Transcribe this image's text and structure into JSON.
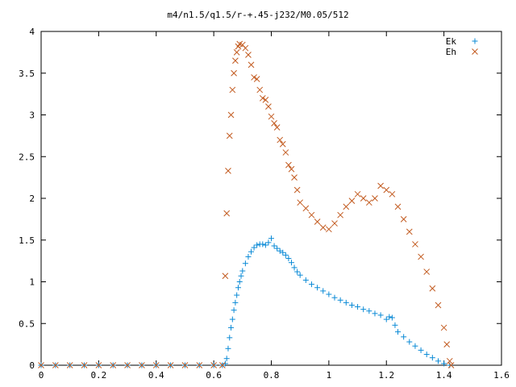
{
  "chart_data": {
    "type": "scatter",
    "title": "m4/n1.5/q1.5/r-+.45-j232/M0.05/512",
    "xlim": [
      0,
      1.6
    ],
    "ylim": [
      0,
      4
    ],
    "x_ticks": [
      "0",
      "0.2",
      "0.4",
      "0.6",
      "0.8",
      "1",
      "1.2",
      "1.4",
      "1.6"
    ],
    "y_ticks": [
      "0",
      "0.5",
      "1",
      "1.5",
      "2",
      "2.5",
      "3",
      "3.5",
      "4"
    ],
    "grid": false,
    "legend_position": "top-right",
    "series": [
      {
        "name": "Ek",
        "marker": "plus",
        "color": "#0a8ad6",
        "points": [
          [
            0.0,
            0.0
          ],
          [
            0.05,
            0.0
          ],
          [
            0.1,
            0.0
          ],
          [
            0.15,
            0.0
          ],
          [
            0.2,
            0.0
          ],
          [
            0.25,
            0.0
          ],
          [
            0.3,
            0.0
          ],
          [
            0.35,
            0.0
          ],
          [
            0.4,
            0.0
          ],
          [
            0.45,
            0.0
          ],
          [
            0.5,
            0.0
          ],
          [
            0.55,
            0.0
          ],
          [
            0.6,
            0.0
          ],
          [
            0.63,
            0.0
          ],
          [
            0.64,
            0.02
          ],
          [
            0.645,
            0.08
          ],
          [
            0.65,
            0.2
          ],
          [
            0.655,
            0.33
          ],
          [
            0.66,
            0.45
          ],
          [
            0.665,
            0.55
          ],
          [
            0.67,
            0.66
          ],
          [
            0.675,
            0.75
          ],
          [
            0.68,
            0.84
          ],
          [
            0.685,
            0.93
          ],
          [
            0.69,
            1.0
          ],
          [
            0.695,
            1.07
          ],
          [
            0.7,
            1.13
          ],
          [
            0.71,
            1.22
          ],
          [
            0.72,
            1.3
          ],
          [
            0.73,
            1.36
          ],
          [
            0.74,
            1.41
          ],
          [
            0.75,
            1.44
          ],
          [
            0.76,
            1.45
          ],
          [
            0.77,
            1.45
          ],
          [
            0.78,
            1.44
          ],
          [
            0.79,
            1.47
          ],
          [
            0.8,
            1.52
          ],
          [
            0.81,
            1.43
          ],
          [
            0.82,
            1.4
          ],
          [
            0.83,
            1.37
          ],
          [
            0.84,
            1.35
          ],
          [
            0.85,
            1.32
          ],
          [
            0.86,
            1.28
          ],
          [
            0.87,
            1.23
          ],
          [
            0.88,
            1.17
          ],
          [
            0.89,
            1.12
          ],
          [
            0.9,
            1.08
          ],
          [
            0.92,
            1.02
          ],
          [
            0.94,
            0.97
          ],
          [
            0.96,
            0.93
          ],
          [
            0.98,
            0.89
          ],
          [
            1.0,
            0.85
          ],
          [
            1.02,
            0.81
          ],
          [
            1.04,
            0.78
          ],
          [
            1.06,
            0.75
          ],
          [
            1.08,
            0.72
          ],
          [
            1.1,
            0.7
          ],
          [
            1.12,
            0.67
          ],
          [
            1.14,
            0.65
          ],
          [
            1.16,
            0.62
          ],
          [
            1.18,
            0.6
          ],
          [
            1.2,
            0.55
          ],
          [
            1.21,
            0.58
          ],
          [
            1.22,
            0.57
          ],
          [
            1.23,
            0.48
          ],
          [
            1.24,
            0.4
          ],
          [
            1.26,
            0.34
          ],
          [
            1.28,
            0.28
          ],
          [
            1.3,
            0.23
          ],
          [
            1.32,
            0.18
          ],
          [
            1.34,
            0.13
          ],
          [
            1.36,
            0.09
          ],
          [
            1.38,
            0.05
          ],
          [
            1.4,
            0.02
          ],
          [
            1.42,
            0.0
          ]
        ]
      },
      {
        "name": "Eh",
        "marker": "cross",
        "color": "#c25a1f",
        "points": [
          [
            0.0,
            0.0
          ],
          [
            0.05,
            0.0
          ],
          [
            0.1,
            0.0
          ],
          [
            0.15,
            0.0
          ],
          [
            0.2,
            0.0
          ],
          [
            0.25,
            0.0
          ],
          [
            0.3,
            0.0
          ],
          [
            0.35,
            0.0
          ],
          [
            0.4,
            0.0
          ],
          [
            0.45,
            0.0
          ],
          [
            0.5,
            0.0
          ],
          [
            0.55,
            0.0
          ],
          [
            0.6,
            0.0
          ],
          [
            0.63,
            0.0
          ],
          [
            0.64,
            1.07
          ],
          [
            0.645,
            1.82
          ],
          [
            0.65,
            2.33
          ],
          [
            0.655,
            2.75
          ],
          [
            0.66,
            3.0
          ],
          [
            0.665,
            3.3
          ],
          [
            0.67,
            3.5
          ],
          [
            0.675,
            3.65
          ],
          [
            0.68,
            3.75
          ],
          [
            0.685,
            3.82
          ],
          [
            0.69,
            3.85
          ],
          [
            0.7,
            3.84
          ],
          [
            0.71,
            3.8
          ],
          [
            0.72,
            3.72
          ],
          [
            0.73,
            3.6
          ],
          [
            0.74,
            3.45
          ],
          [
            0.75,
            3.43
          ],
          [
            0.76,
            3.3
          ],
          [
            0.77,
            3.2
          ],
          [
            0.78,
            3.18
          ],
          [
            0.79,
            3.1
          ],
          [
            0.8,
            2.98
          ],
          [
            0.81,
            2.9
          ],
          [
            0.82,
            2.85
          ],
          [
            0.83,
            2.7
          ],
          [
            0.84,
            2.65
          ],
          [
            0.85,
            2.55
          ],
          [
            0.86,
            2.4
          ],
          [
            0.87,
            2.35
          ],
          [
            0.88,
            2.25
          ],
          [
            0.89,
            2.1
          ],
          [
            0.9,
            1.95
          ],
          [
            0.92,
            1.88
          ],
          [
            0.94,
            1.8
          ],
          [
            0.96,
            1.72
          ],
          [
            0.98,
            1.65
          ],
          [
            1.0,
            1.63
          ],
          [
            1.02,
            1.7
          ],
          [
            1.04,
            1.8
          ],
          [
            1.06,
            1.9
          ],
          [
            1.08,
            1.97
          ],
          [
            1.1,
            2.05
          ],
          [
            1.12,
            2.0
          ],
          [
            1.14,
            1.95
          ],
          [
            1.16,
            2.0
          ],
          [
            1.18,
            2.15
          ],
          [
            1.2,
            2.1
          ],
          [
            1.22,
            2.05
          ],
          [
            1.24,
            1.9
          ],
          [
            1.26,
            1.75
          ],
          [
            1.28,
            1.6
          ],
          [
            1.3,
            1.45
          ],
          [
            1.32,
            1.3
          ],
          [
            1.34,
            1.12
          ],
          [
            1.36,
            0.92
          ],
          [
            1.38,
            0.72
          ],
          [
            1.4,
            0.45
          ],
          [
            1.41,
            0.25
          ],
          [
            1.42,
            0.05
          ],
          [
            1.425,
            0.0
          ]
        ]
      }
    ]
  }
}
